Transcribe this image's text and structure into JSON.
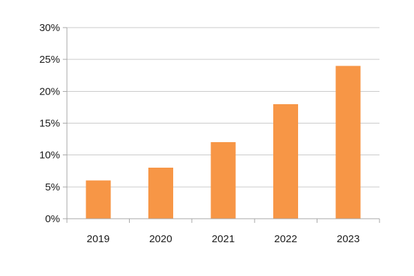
{
  "chart_data": {
    "type": "bar",
    "title": "",
    "categories": [
      "2019",
      "2020",
      "2021",
      "2022",
      "2023"
    ],
    "values": [
      6,
      8,
      12,
      18,
      24
    ],
    "value_unit": "%",
    "xlabel": "",
    "ylabel": "",
    "ylim": [
      0,
      30
    ],
    "ytick_step": 5,
    "ytick_labels": [
      "0%",
      "5%",
      "10%",
      "15%",
      "20%",
      "25%",
      "30%"
    ],
    "grid": true,
    "legend": "none",
    "colors": {
      "bar": "#F79646",
      "gridline": "#C9C9C9",
      "axis": "#A6A6A6",
      "text": "#1A1A1A",
      "background": "#FFFFFF"
    }
  }
}
